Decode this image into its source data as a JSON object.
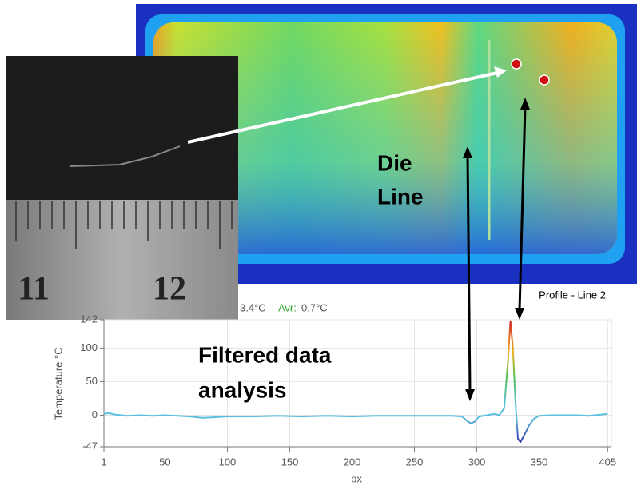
{
  "chart_data": {
    "type": "line",
    "title": "Profile - Line 2",
    "stats_partial": "3.4°C",
    "avr_label": "Avr:",
    "avr_value": "0.7°C",
    "x_label": "px",
    "y_label": "Temperature °C",
    "x": [
      1,
      5,
      10,
      15,
      20,
      30,
      40,
      50,
      60,
      70,
      80,
      90,
      100,
      120,
      140,
      160,
      180,
      200,
      220,
      240,
      260,
      280,
      288,
      292,
      295,
      298,
      302,
      308,
      314,
      318,
      322,
      325,
      327,
      329,
      331,
      333,
      335,
      338,
      342,
      346,
      350,
      360,
      370,
      380,
      390,
      400,
      405
    ],
    "series": [
      {
        "values": [
          2,
          3,
          1,
          0,
          -1,
          0,
          -1,
          0,
          -1,
          -2,
          -4,
          -3,
          -2,
          -2,
          -1,
          -2,
          -1,
          -2,
          -1,
          -1,
          -1,
          -1,
          -2,
          -8,
          -12,
          -10,
          -2,
          0,
          2,
          0,
          10,
          80,
          140,
          100,
          20,
          -35,
          -40,
          -30,
          -15,
          -5,
          -1,
          0,
          0,
          0,
          -1,
          1,
          2
        ]
      }
    ],
    "xlim": [
      1,
      408
    ],
    "ylim": [
      -47,
      142
    ],
    "xticks": [
      1,
      50,
      100,
      150,
      200,
      250,
      300,
      350,
      405
    ],
    "yticks": [
      -47,
      0,
      50,
      100,
      142
    ],
    "grid": true
  },
  "annotations": {
    "die_line": [
      "Die",
      "Line"
    ],
    "filtered": [
      "Filtered data",
      "analysis"
    ]
  },
  "photo": {
    "ruler_labels": [
      "11",
      "12"
    ]
  }
}
